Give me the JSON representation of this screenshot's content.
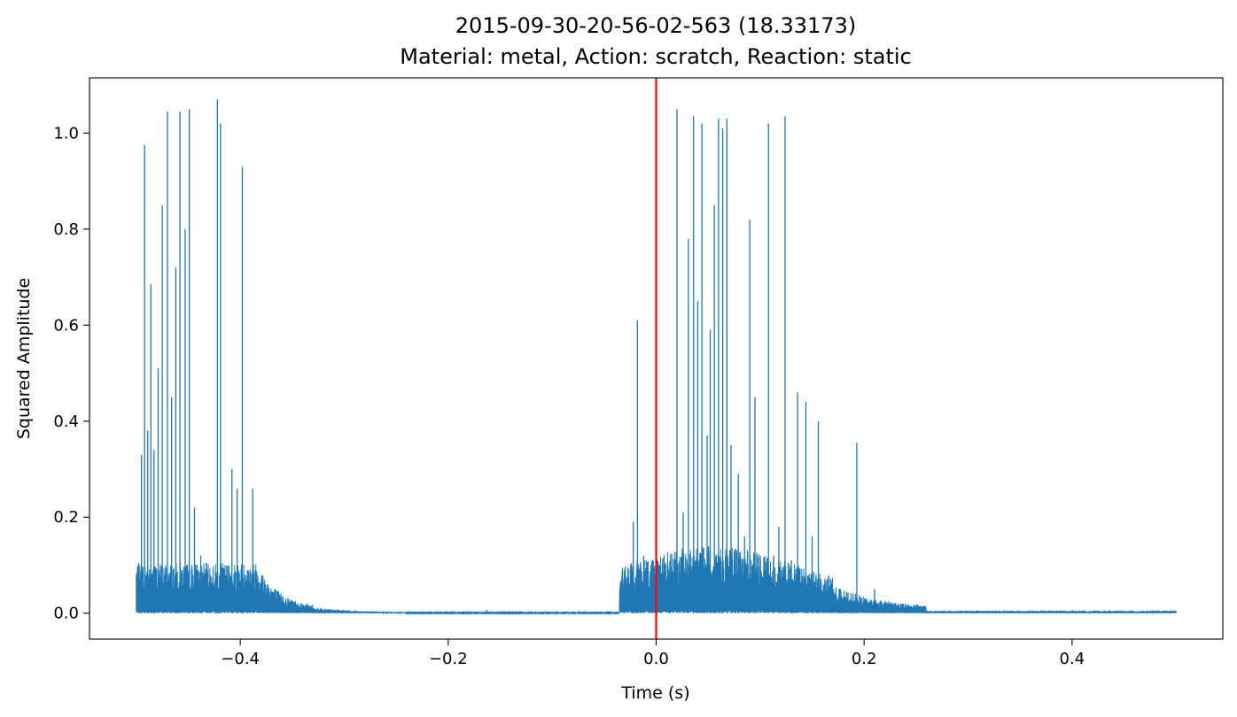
{
  "chart_data": {
    "type": "line",
    "title": "2015-09-30-20-56-02-563 (18.33173)",
    "subtitle": "Material: metal, Action: scratch, Reaction: static",
    "xlabel": "Time (s)",
    "ylabel": "Squared Amplitude",
    "xlim": [
      -0.545,
      0.545
    ],
    "ylim": [
      -0.054,
      1.115
    ],
    "xticks": [
      -0.4,
      -0.2,
      0.0,
      0.2,
      0.4
    ],
    "xtick_labels": [
      "−0.4",
      "−0.2",
      "0.0",
      "0.2",
      "0.4"
    ],
    "yticks": [
      0.0,
      0.2,
      0.4,
      0.6,
      0.8,
      1.0
    ],
    "ytick_labels": [
      "0.0",
      "0.2",
      "0.4",
      "0.6",
      "0.8",
      "1.0"
    ],
    "grid": false,
    "legend": "none",
    "series": [
      {
        "color": "#1f77b4",
        "x_range": [
          -0.5,
          0.5
        ],
        "peaks": [
          {
            "x": -0.498,
            "y": 0.1
          },
          {
            "x": -0.495,
            "y": 0.33
          },
          {
            "x": -0.492,
            "y": 0.975
          },
          {
            "x": -0.489,
            "y": 0.38
          },
          {
            "x": -0.486,
            "y": 0.685
          },
          {
            "x": -0.483,
            "y": 0.34
          },
          {
            "x": -0.479,
            "y": 0.51
          },
          {
            "x": -0.475,
            "y": 0.85
          },
          {
            "x": -0.47,
            "y": 1.045
          },
          {
            "x": -0.466,
            "y": 0.45
          },
          {
            "x": -0.462,
            "y": 0.72
          },
          {
            "x": -0.458,
            "y": 1.045
          },
          {
            "x": -0.453,
            "y": 0.8
          },
          {
            "x": -0.449,
            "y": 1.05
          },
          {
            "x": -0.444,
            "y": 0.22
          },
          {
            "x": -0.438,
            "y": 0.12
          },
          {
            "x": -0.432,
            "y": 0.09
          },
          {
            "x": -0.422,
            "y": 1.07
          },
          {
            "x": -0.419,
            "y": 1.02
          },
          {
            "x": -0.408,
            "y": 0.3
          },
          {
            "x": -0.403,
            "y": 0.26
          },
          {
            "x": -0.398,
            "y": 0.93
          },
          {
            "x": -0.393,
            "y": 0.09
          },
          {
            "x": -0.388,
            "y": 0.26
          },
          {
            "x": -0.163,
            "y": 0.007
          },
          {
            "x": -0.022,
            "y": 0.19
          },
          {
            "x": -0.018,
            "y": 0.61
          },
          {
            "x": -0.012,
            "y": 0.12
          },
          {
            "x": -0.007,
            "y": 0.05
          },
          {
            "x": 0.012,
            "y": 0.09
          },
          {
            "x": 0.02,
            "y": 1.05
          },
          {
            "x": 0.026,
            "y": 0.21
          },
          {
            "x": 0.031,
            "y": 0.78
          },
          {
            "x": 0.036,
            "y": 1.035
          },
          {
            "x": 0.04,
            "y": 0.65
          },
          {
            "x": 0.044,
            "y": 1.02
          },
          {
            "x": 0.049,
            "y": 0.37
          },
          {
            "x": 0.052,
            "y": 0.59
          },
          {
            "x": 0.056,
            "y": 0.85
          },
          {
            "x": 0.06,
            "y": 1.03
          },
          {
            "x": 0.064,
            "y": 1.01
          },
          {
            "x": 0.068,
            "y": 1.03
          },
          {
            "x": 0.072,
            "y": 0.35
          },
          {
            "x": 0.079,
            "y": 0.29
          },
          {
            "x": 0.085,
            "y": 0.16
          },
          {
            "x": 0.09,
            "y": 0.82
          },
          {
            "x": 0.095,
            "y": 0.45
          },
          {
            "x": 0.1,
            "y": 0.12
          },
          {
            "x": 0.108,
            "y": 1.02
          },
          {
            "x": 0.113,
            "y": 0.12
          },
          {
            "x": 0.118,
            "y": 0.18
          },
          {
            "x": 0.124,
            "y": 1.035
          },
          {
            "x": 0.13,
            "y": 0.11
          },
          {
            "x": 0.136,
            "y": 0.46
          },
          {
            "x": 0.144,
            "y": 0.44
          },
          {
            "x": 0.15,
            "y": 0.16
          },
          {
            "x": 0.156,
            "y": 0.4
          },
          {
            "x": 0.168,
            "y": 0.07
          },
          {
            "x": 0.176,
            "y": 0.05
          },
          {
            "x": 0.193,
            "y": 0.355
          },
          {
            "x": 0.21,
            "y": 0.05
          },
          {
            "x": 0.225,
            "y": 0.02
          },
          {
            "x": 0.24,
            "y": 0.015
          },
          {
            "x": 0.309,
            "y": 0.006
          },
          {
            "x": 0.478,
            "y": 0.006
          }
        ]
      }
    ],
    "reference_line": {
      "x": 0.0,
      "color": "#ff0000",
      "orientation": "vertical"
    }
  }
}
